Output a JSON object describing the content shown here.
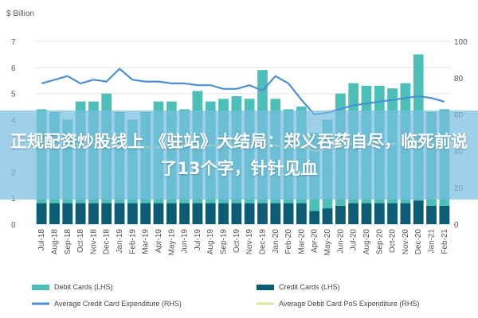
{
  "chart_data": {
    "type": "bar",
    "unit_label": "$ Billion",
    "categories": [
      "Jul-18",
      "Aug-18",
      "Sep-18",
      "Oct-18",
      "Nov-18",
      "Dec-18",
      "Jan-19",
      "Feb-19",
      "Mar-19",
      "Apr-19",
      "May-19",
      "Jun-19",
      "Jul-19",
      "Aug-19",
      "Sep-19",
      "Oct-19",
      "Nov-19",
      "Dec-19",
      "Jan-20",
      "Feb-20",
      "Mar-20",
      "Apr-20",
      "May-20",
      "Jun-20",
      "Jul-20",
      "Aug-20",
      "Sep-20",
      "Oct-20",
      "Nov-20",
      "Dec-20",
      "Jan-21",
      "Feb-21"
    ],
    "series": [
      {
        "name": "Debit Cards (LHS)",
        "axis": "left",
        "kind": "bar",
        "color": "#4bbfb8",
        "values": [
          4.4,
          4.3,
          4.0,
          4.7,
          4.7,
          5.0,
          4.3,
          4.0,
          4.3,
          4.7,
          4.7,
          4.4,
          5.1,
          4.7,
          4.8,
          4.9,
          4.8,
          5.9,
          4.8,
          4.4,
          4.5,
          3.5,
          4.0,
          5.0,
          5.4,
          5.3,
          5.3,
          5.2,
          5.4,
          6.5,
          4.3,
          4.4
        ]
      },
      {
        "name": "Credit Cards (LHS)",
        "axis": "left",
        "kind": "bar",
        "color": "#0d5c75",
        "values": [
          0.8,
          0.8,
          0.8,
          0.8,
          0.8,
          0.8,
          0.8,
          0.8,
          0.8,
          0.8,
          0.8,
          0.8,
          0.8,
          0.8,
          0.8,
          0.8,
          0.8,
          0.8,
          0.8,
          0.8,
          0.8,
          0.5,
          0.6,
          0.7,
          0.8,
          0.8,
          0.8,
          0.8,
          0.8,
          0.9,
          0.7,
          0.7
        ]
      },
      {
        "name": "Average Credit Card Expenditure (RHS)",
        "axis": "right",
        "kind": "line",
        "color": "#4b8fd6",
        "values": [
          77,
          79,
          81,
          77,
          79,
          78,
          85,
          79,
          78,
          78,
          77,
          77,
          76,
          76,
          74,
          74,
          76,
          73,
          81,
          77,
          68,
          60,
          61,
          63,
          65,
          66,
          67,
          68,
          69,
          70,
          69,
          67
        ]
      },
      {
        "name": "Average Debit Card PoS Expenditure (RHS)",
        "axis": "right",
        "kind": "line",
        "color": "#d6e8a0",
        "values": [
          43,
          43,
          43,
          44,
          44,
          44,
          43,
          42,
          42,
          42,
          43,
          43,
          43,
          43,
          43,
          43,
          43,
          44,
          43,
          42,
          42,
          40,
          41,
          43,
          44,
          44,
          44,
          44,
          44,
          45,
          44,
          43
        ]
      }
    ],
    "ylim_left": [
      0,
      7
    ],
    "ylim_right": [
      0,
      100
    ],
    "yticks_left": [
      0,
      1,
      2,
      3,
      4,
      5,
      6,
      7
    ],
    "yticks_right": [
      0,
      20,
      40,
      60,
      80,
      100
    ],
    "grid": "horizontal",
    "legend_position": "bottom"
  },
  "overlay": {
    "headline": "正规配资炒股线上 《驻站》大结局：郑义吞药自尽，临死前说了13个字，针针见血"
  }
}
